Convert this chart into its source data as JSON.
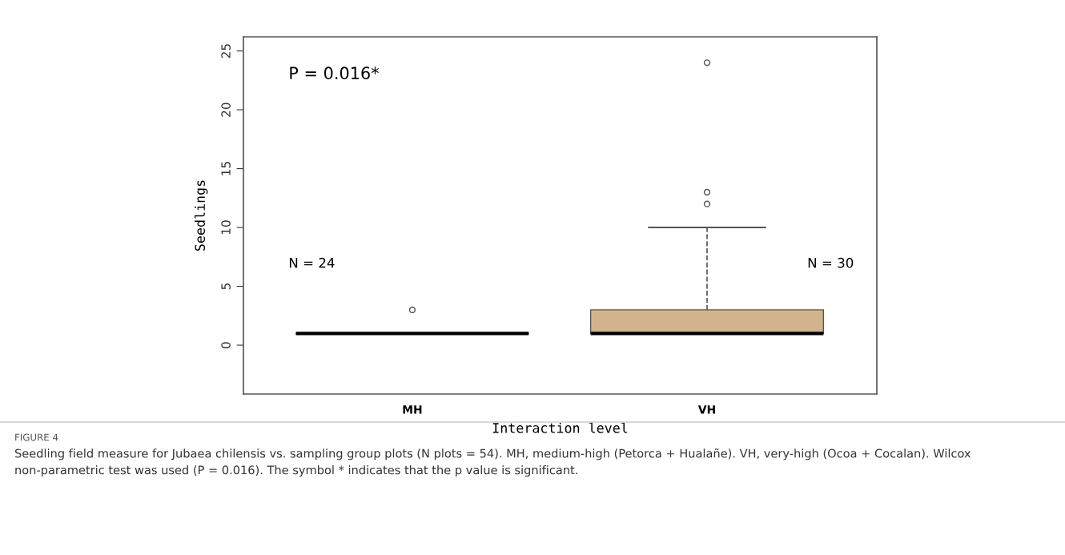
{
  "chart_data": {
    "type": "box",
    "xlabel": "Interaction level",
    "ylabel": "Seedlings",
    "categories": [
      "MH",
      "VH"
    ],
    "boxes": [
      {
        "low": 1,
        "q1": 1,
        "median": 1,
        "q3": 1,
        "high": 1,
        "outliers": [
          3
        ]
      },
      {
        "low": 1,
        "q1": 1,
        "median": 1,
        "q3": 3,
        "high": 10,
        "outliers": [
          12,
          13,
          24
        ]
      }
    ],
    "colors": [
      null,
      "#d2b48c"
    ],
    "ylim": [
      -4.15,
      26.2
    ],
    "yticks": [
      0,
      5,
      10,
      15,
      20,
      25
    ],
    "grid": false,
    "legend": false,
    "annotations": [
      "P = 0.016*",
      "N = 24",
      "N = 30",
      "FIGURE 4",
      "Seedling field measure for Jubaea chilensis vs. sampling group plots (N plots = 54). MH, medium-high (Petorca + Hualañe). VH, very-high (Ocoa + Cocalan). Wilcox non-parametric test was used (P = 0.016). The symbol * indicates that the p value is significant."
    ]
  }
}
